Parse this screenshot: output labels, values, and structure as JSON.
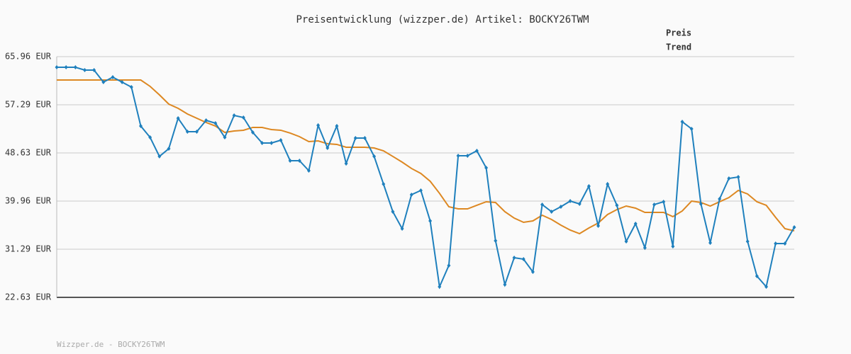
{
  "chart_data": {
    "type": "line",
    "title": "Preisentwicklung (wizzper.de) Artikel: BOCKY26TWM",
    "footer": "Wizzper.de - BOCKY26TWM",
    "legend": "top-right",
    "grid": true,
    "categories": [
      null,
      null,
      null,
      null,
      null,
      null,
      null,
      null,
      null,
      null,
      null,
      null,
      null,
      null,
      null,
      null,
      null,
      null,
      null,
      null,
      null,
      null,
      null,
      null,
      null,
      null,
      null,
      null,
      null,
      null,
      null,
      null,
      null,
      null,
      null,
      null,
      null,
      null,
      null,
      null,
      null,
      null,
      null,
      null,
      null,
      null,
      null,
      null,
      null,
      null,
      null,
      null,
      null,
      null,
      null,
      null,
      null,
      null,
      null,
      null,
      null,
      null,
      null,
      null,
      null,
      null,
      null,
      null,
      null,
      null,
      null,
      null,
      null,
      null,
      null,
      null,
      null,
      null,
      null,
      null
    ],
    "ylim": [
      22.63,
      65.96
    ],
    "yticks": [
      {
        "value": 22.63,
        "label": "22.63 EUR"
      },
      {
        "value": 31.29,
        "label": "31.29 EUR"
      },
      {
        "value": 39.96,
        "label": "39.96 EUR"
      },
      {
        "value": 48.63,
        "label": "48.63 EUR"
      },
      {
        "value": 57.29,
        "label": "57.29 EUR"
      },
      {
        "value": 65.96,
        "label": "65.96 EUR"
      }
    ],
    "series": [
      {
        "name": "Preis",
        "color": "#1f80bd",
        "markers": true,
        "values": [
          64.05,
          64.05,
          64.05,
          63.54,
          63.54,
          61.37,
          62.26,
          61.37,
          60.48,
          53.47,
          51.43,
          48.0,
          49.39,
          54.87,
          52.45,
          52.45,
          54.49,
          53.98,
          51.43,
          55.38,
          55.0,
          52.32,
          50.41,
          50.41,
          50.92,
          47.23,
          47.23,
          45.44,
          53.6,
          49.52,
          53.47,
          46.72,
          51.3,
          51.3,
          48.0,
          43.02,
          38.05,
          34.99,
          41.11,
          41.88,
          36.39,
          24.54,
          28.37,
          48.12,
          48.12,
          49.01,
          45.95,
          32.83,
          24.92,
          29.77,
          29.51,
          27.22,
          39.33,
          38.05,
          38.94,
          39.96,
          39.45,
          42.64,
          35.5,
          43.02,
          39.2,
          32.7,
          35.88,
          31.55,
          39.33,
          39.84,
          31.81,
          54.24,
          52.96,
          39.45,
          32.44,
          40.34,
          44.04,
          44.3,
          32.7,
          26.45,
          24.54,
          32.32,
          32.32,
          35.25
        ]
      },
      {
        "name": "Trend",
        "color": "#dd8822",
        "markers": false,
        "values": [
          61.75,
          61.75,
          61.75,
          61.75,
          61.75,
          61.75,
          61.75,
          61.75,
          61.75,
          61.75,
          60.61,
          59.08,
          57.42,
          56.66,
          55.64,
          54.87,
          54.11,
          53.47,
          52.32,
          52.58,
          52.71,
          53.22,
          53.22,
          52.83,
          52.71,
          52.2,
          51.56,
          50.67,
          50.79,
          50.29,
          50.16,
          49.65,
          49.65,
          49.65,
          49.52,
          49.01,
          48.0,
          46.97,
          45.83,
          44.93,
          43.53,
          41.36,
          38.94,
          38.56,
          38.56,
          39.2,
          39.84,
          39.71,
          38.05,
          36.9,
          36.14,
          36.39,
          37.41,
          36.65,
          35.63,
          34.74,
          34.1,
          35.12,
          36.01,
          37.54,
          38.43,
          39.07,
          38.69,
          37.92,
          37.92,
          37.92,
          37.16,
          38.18,
          39.96,
          39.71,
          39.07,
          39.84,
          40.6,
          41.88,
          41.24,
          39.84,
          39.2,
          37.03,
          34.99,
          34.61
        ]
      }
    ]
  }
}
